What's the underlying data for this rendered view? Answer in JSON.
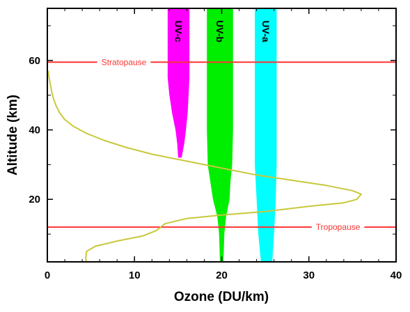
{
  "chart_data": {
    "type": "line",
    "xlabel": "Ozone (DU/km)",
    "ylabel": "Altitude (km)",
    "xlim": [
      0,
      40
    ],
    "ylim": [
      2,
      75
    ],
    "xticks": [
      0,
      10,
      20,
      30,
      40
    ],
    "yticks": [
      20,
      40,
      60
    ],
    "grid": false,
    "series": [
      {
        "color": "#c8c83c",
        "points": [
          [
            4.5,
            2
          ],
          [
            4.4,
            3
          ],
          [
            4.5,
            5
          ],
          [
            5.5,
            6.5
          ],
          [
            8,
            8
          ],
          [
            11,
            9.5
          ],
          [
            12.5,
            11
          ],
          [
            13.5,
            13
          ],
          [
            16,
            14.5
          ],
          [
            20,
            15.5
          ],
          [
            25,
            16.5
          ],
          [
            30,
            18
          ],
          [
            34,
            19
          ],
          [
            35.5,
            20
          ],
          [
            36,
            21.5
          ],
          [
            35,
            22.5
          ],
          [
            32,
            24
          ],
          [
            28,
            25.5
          ],
          [
            24,
            27
          ],
          [
            20,
            29
          ],
          [
            16,
            31
          ],
          [
            12,
            33
          ],
          [
            9,
            35
          ],
          [
            6.5,
            37
          ],
          [
            4.5,
            39
          ],
          [
            3,
            41
          ],
          [
            2,
            43
          ],
          [
            1.4,
            45
          ],
          [
            1,
            47
          ],
          [
            0.7,
            49
          ],
          [
            0.5,
            51
          ],
          [
            0.35,
            53
          ],
          [
            0.2,
            55
          ],
          [
            0.1,
            57
          ]
        ]
      }
    ],
    "bands": [
      {
        "label": "UV-c",
        "color": "#ff00ff",
        "profile": [
          [
            32,
            15.0,
            15.4
          ],
          [
            36,
            14.9,
            15.7
          ],
          [
            40,
            14.7,
            15.9
          ],
          [
            45,
            14.3,
            16.1
          ],
          [
            50,
            14.0,
            16.2
          ],
          [
            55,
            13.8,
            16.3
          ],
          [
            75,
            13.8,
            16.3
          ]
        ]
      },
      {
        "label": "UV-b",
        "color": "#00ee00",
        "profile": [
          [
            2,
            19.8,
            20.2
          ],
          [
            10,
            19.7,
            20.3
          ],
          [
            15,
            19.5,
            20.5
          ],
          [
            20,
            19.0,
            20.9
          ],
          [
            25,
            18.7,
            21.0
          ],
          [
            30,
            18.4,
            21.2
          ],
          [
            40,
            18.3,
            21.3
          ],
          [
            75,
            18.3,
            21.3
          ]
        ]
      },
      {
        "label": "UV-a",
        "color": "#00ffff",
        "profile": [
          [
            2,
            24.5,
            25.8
          ],
          [
            10,
            24.2,
            26.0
          ],
          [
            20,
            24.0,
            26.2
          ],
          [
            30,
            23.8,
            26.3
          ],
          [
            75,
            23.8,
            26.3
          ]
        ]
      }
    ],
    "reference_lines": [
      {
        "label": "Stratopause",
        "y": 59.5,
        "color": "#ff3333"
      },
      {
        "label": "Tropopause",
        "y": 12,
        "color": "#ff3333"
      }
    ]
  }
}
